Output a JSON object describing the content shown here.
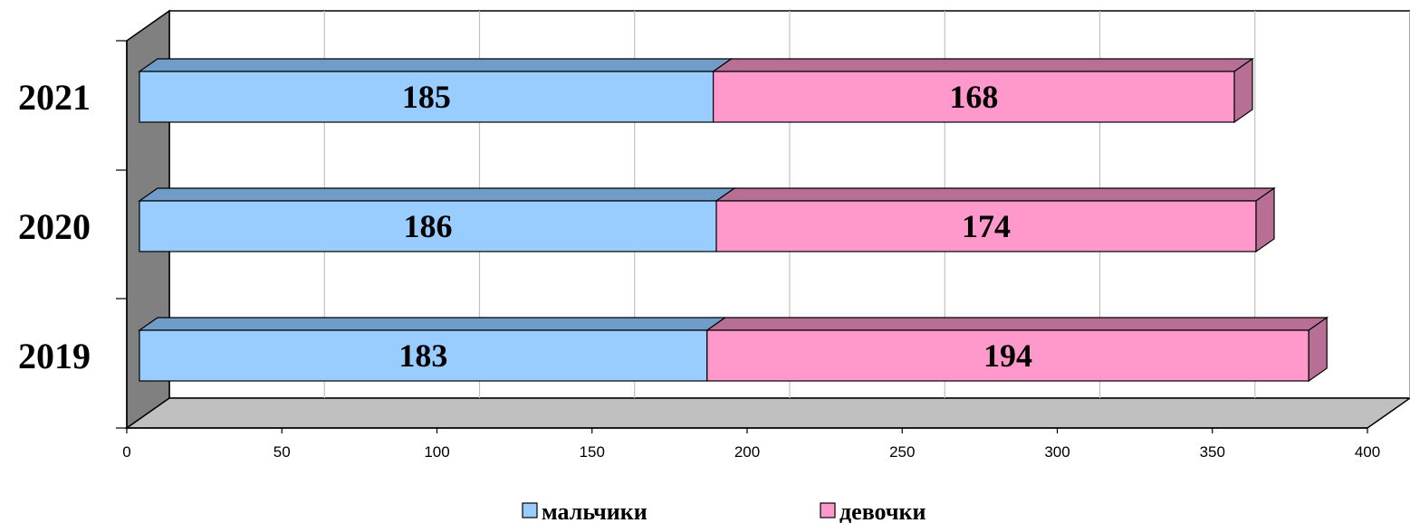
{
  "chart_data": {
    "type": "bar",
    "orientation": "horizontal",
    "stacked": true,
    "three_d": true,
    "categories": [
      "2019",
      "2020",
      "2021"
    ],
    "series": [
      {
        "name": "мальчики",
        "values": [
          183,
          186,
          185
        ],
        "color": "#99ccff",
        "top_color": "#6f9cc8"
      },
      {
        "name": "девочки",
        "values": [
          194,
          174,
          168
        ],
        "color": "#ff99cc",
        "top_color": "#b86f95"
      }
    ],
    "xlim": [
      0,
      400
    ],
    "x_ticks": [
      "0",
      "50",
      "100",
      "150",
      "200",
      "250",
      "300",
      "350",
      "400"
    ],
    "grid": true,
    "legend": "bottom",
    "title": "",
    "xlabel": "",
    "ylabel": ""
  }
}
